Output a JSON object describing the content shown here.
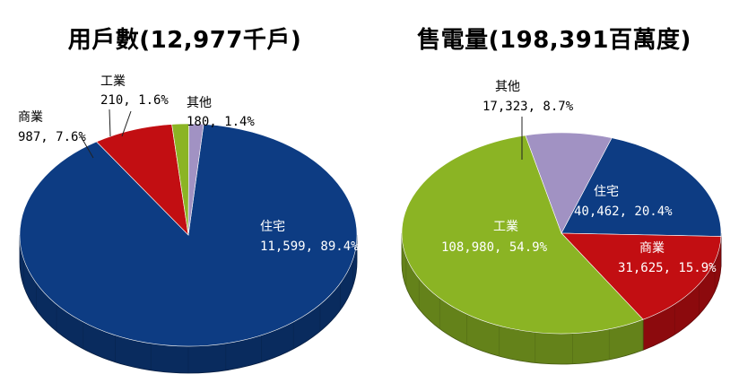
{
  "chart_data": [
    {
      "type": "pie",
      "title": "用戶數(12,977千戶)",
      "slices": [
        {
          "name": "住宅",
          "value": 11599,
          "percent": "89.4%",
          "value_label": "11,599, 89.4%",
          "color": "#0D3C83"
        },
        {
          "name": "商業",
          "value": 987,
          "percent": "7.6%",
          "value_label": "987, 7.6%",
          "color": "#C20E12"
        },
        {
          "name": "工業",
          "value": 210,
          "percent": "1.6%",
          "value_label": "210, 1.6%",
          "color": "#8BB424"
        },
        {
          "name": "其他",
          "value": 180,
          "percent": "1.4%",
          "value_label": "180, 1.4%",
          "color": "#A192C3"
        }
      ]
    },
    {
      "type": "pie",
      "title": "售電量(198,391百萬度)",
      "slices": [
        {
          "name": "住宅",
          "value": 40462,
          "percent": "20.4%",
          "value_label": "40,462, 20.4%",
          "color": "#0D3C83"
        },
        {
          "name": "商業",
          "value": 31625,
          "percent": "15.9%",
          "value_label": "31,625, 15.9%",
          "color": "#C20E12"
        },
        {
          "name": "工業",
          "value": 108980,
          "percent": "54.9%",
          "value_label": "108,980, 54.9%",
          "color": "#8BB424"
        },
        {
          "name": "其他",
          "value": 17323,
          "percent": "8.7%",
          "value_label": "17,323, 8.7%",
          "color": "#A192C3"
        }
      ]
    }
  ]
}
